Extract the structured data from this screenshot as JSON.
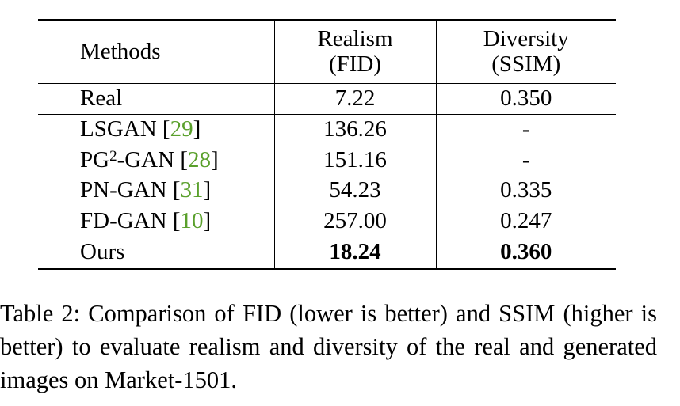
{
  "table": {
    "headers": {
      "methods": "Methods",
      "realism_line1": "Realism",
      "realism_line2": "(FID)",
      "diversity_line1": "Diversity",
      "diversity_line2": "(SSIM)"
    },
    "real_row": {
      "method": "Real",
      "fid": "7.22",
      "ssim": "0.350"
    },
    "rows": [
      {
        "method": "LSGAN",
        "cite": "29",
        "fid": "136.26",
        "ssim": "-"
      },
      {
        "method": "PG",
        "sup": "2",
        "method_suffix": "-GAN",
        "cite": "28",
        "fid": "151.16",
        "ssim": "-"
      },
      {
        "method": "PN-GAN",
        "cite": "31",
        "fid": "54.23",
        "ssim": "0.335"
      },
      {
        "method": "FD-GAN",
        "cite": "10",
        "fid": "257.00",
        "ssim": "0.247"
      }
    ],
    "ours_row": {
      "method": "Ours",
      "fid": "18.24",
      "ssim": "0.360"
    },
    "cite_color": "#5aa02c"
  },
  "caption": {
    "text": "Table 2: Comparison of FID (lower is better) and SSIM (higher is better) to evaluate realism and diversity of the real and generated images on Market-1501."
  }
}
